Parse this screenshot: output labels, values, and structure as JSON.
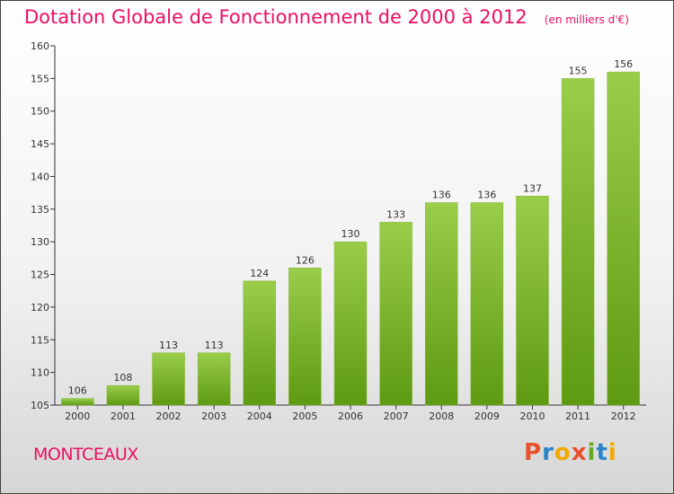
{
  "chart_data": {
    "type": "bar",
    "title": "Dotation Globale de Fonctionnement de 2000 à 2012",
    "unit_note": "(en milliers d'€)",
    "categories": [
      "2000",
      "2001",
      "2002",
      "2003",
      "2004",
      "2005",
      "2006",
      "2007",
      "2008",
      "2009",
      "2010",
      "2011",
      "2012"
    ],
    "values": [
      106,
      108,
      113,
      113,
      124,
      126,
      130,
      133,
      136,
      136,
      137,
      155,
      156
    ],
    "ylim": [
      105,
      160
    ],
    "yticks": [
      105,
      110,
      115,
      120,
      125,
      130,
      135,
      140,
      145,
      150,
      155,
      160
    ],
    "xlabel": "",
    "ylabel": "",
    "grid": false,
    "bar_color_top": "#9acd4a",
    "bar_color_bottom": "#5e9a12"
  },
  "footer": {
    "commune": "MONTCEAUX",
    "logo_letters": [
      {
        "char": "P",
        "color": "#e8512b"
      },
      {
        "char": "r",
        "color": "#2b86c9"
      },
      {
        "char": "o",
        "color": "#f2a900"
      },
      {
        "char": "x",
        "color": "#e8512b"
      },
      {
        "char": "i",
        "color": "#66aa22"
      },
      {
        "char": "t",
        "color": "#2b86c9"
      },
      {
        "char": "i",
        "color": "#f2a900"
      }
    ]
  }
}
